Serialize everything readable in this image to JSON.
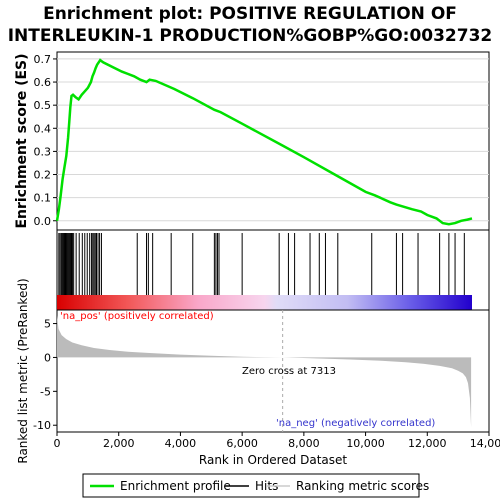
{
  "title_line1": "Enrichment plot: POSITIVE REGULATION OF",
  "title_line2": "INTERLEUKIN-1 PRODUCTION%GOBP%GO:0032732",
  "colors": {
    "enrichment": "#00e000",
    "hits": "#000000",
    "metric_fill": "#bbbbbb",
    "pos_label": "#ff0000",
    "neg_label": "#3333cc",
    "zero_line": "#aaaaaa"
  },
  "chart_data": [
    {
      "type": "line",
      "name": "enrichment-profile",
      "ylabel": "Enrichment score (ES)",
      "xlim": [
        0,
        14000
      ],
      "ylim": [
        -0.04,
        0.73
      ],
      "yticks": [
        0.0,
        0.1,
        0.2,
        0.3,
        0.4,
        0.5,
        0.6,
        0.7
      ],
      "ytick_labels": [
        "0.0",
        "0.1",
        "0.2",
        "0.3",
        "0.4",
        "0.5",
        "0.6",
        "0.7"
      ],
      "grid": true,
      "x": [
        0,
        60,
        120,
        180,
        240,
        300,
        360,
        400,
        430,
        470,
        520,
        600,
        700,
        800,
        900,
        1000,
        1100,
        1150,
        1200,
        1250,
        1300,
        1350,
        1400,
        1450,
        1500,
        1800,
        2100,
        2500,
        2700,
        2900,
        3000,
        3200,
        3800,
        4400,
        5100,
        5300,
        6000,
        7313,
        8000,
        9000,
        10000,
        10300,
        10800,
        11000,
        11500,
        11800,
        12000,
        12300,
        12500,
        12700,
        12900,
        13100,
        13300,
        13450
      ],
      "y": [
        0.0,
        0.05,
        0.11,
        0.18,
        0.23,
        0.28,
        0.36,
        0.43,
        0.49,
        0.54,
        0.545,
        0.535,
        0.525,
        0.545,
        0.56,
        0.575,
        0.6,
        0.625,
        0.64,
        0.66,
        0.675,
        0.685,
        0.695,
        0.69,
        0.685,
        0.665,
        0.645,
        0.625,
        0.61,
        0.6,
        0.61,
        0.605,
        0.57,
        0.53,
        0.48,
        0.47,
        0.42,
        0.325,
        0.275,
        0.2,
        0.125,
        0.11,
        0.08,
        0.07,
        0.05,
        0.04,
        0.025,
        0.01,
        -0.01,
        -0.015,
        -0.01,
        0.0,
        0.005,
        0.01
      ]
    },
    {
      "type": "hits",
      "name": "hits",
      "x": [
        60,
        100,
        140,
        170,
        200,
        230,
        260,
        290,
        320,
        350,
        380,
        410,
        440,
        470,
        500,
        540,
        620,
        720,
        820,
        900,
        980,
        1060,
        1120,
        1160,
        1200,
        1240,
        1280,
        1330,
        1380,
        1440,
        2600,
        2900,
        2960,
        3100,
        3700,
        4400,
        5100,
        5150,
        5200,
        5250,
        6000,
        7200,
        7500,
        7700,
        8200,
        8500,
        8700,
        9100,
        10200,
        11000,
        11200,
        11700,
        12400,
        12700,
        12900,
        13200
      ]
    },
    {
      "type": "area",
      "name": "ranked-metric",
      "ylabel": "Ranked list metric (PreRanked)",
      "xlabel": "Rank in Ordered Dataset",
      "xlim": [
        0,
        14000
      ],
      "ylim": [
        -11,
        7
      ],
      "yticks": [
        5,
        0,
        -5,
        -10
      ],
      "ytick_labels": [
        "5",
        "0",
        "-5",
        "-10"
      ],
      "xticks": [
        0,
        2000,
        4000,
        6000,
        8000,
        10000,
        12000,
        14000
      ],
      "xtick_labels": [
        "0",
        "2,000",
        "4,000",
        "6,000",
        "8,000",
        "10,000",
        "12,000",
        "14,000"
      ],
      "x": [
        0,
        50,
        150,
        300,
        500,
        800,
        1200,
        1700,
        2300,
        3000,
        4000,
        5000,
        6000,
        7313,
        8500,
        9500,
        10500,
        11300,
        11900,
        12400,
        12800,
        13000,
        13150,
        13250,
        13320,
        13380,
        13420
      ],
      "y": [
        6.2,
        4.2,
        3.3,
        2.7,
        2.2,
        1.8,
        1.4,
        1.1,
        0.85,
        0.65,
        0.42,
        0.25,
        0.1,
        0.0,
        -0.15,
        -0.3,
        -0.5,
        -0.7,
        -0.95,
        -1.25,
        -1.6,
        -1.95,
        -2.35,
        -2.9,
        -3.8,
        -6.0,
        -10.3
      ],
      "zero_cross_label": "Zero cross at 7313",
      "zero_cross": 7313,
      "pos_label": "'na_pos' (positively correlated)",
      "neg_label": "'na_neg' (negatively correlated)"
    }
  ],
  "legend": {
    "items": [
      {
        "label": "Enrichment profile",
        "color": "#00e000",
        "kind": "line"
      },
      {
        "label": "Hits",
        "color": "#000000",
        "kind": "line"
      },
      {
        "label": "Ranking metric scores",
        "color": "#cccccc",
        "kind": "line"
      }
    ]
  }
}
